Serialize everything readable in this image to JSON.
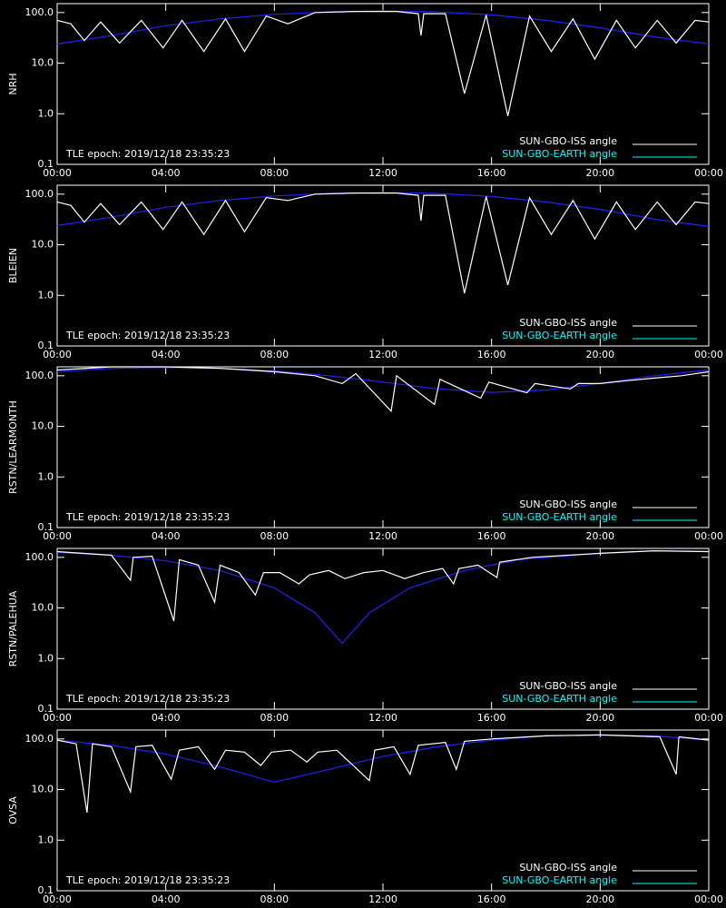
{
  "chart_data": [
    {
      "type": "line",
      "ylabel": "NRH",
      "annotation": "TLE epoch: 2019/12/18 23:35:23",
      "log_y": true,
      "legend": "lower right",
      "xlim": [
        0,
        24
      ],
      "xticks": [
        {
          "value": 0,
          "label": "00:00"
        },
        {
          "value": 4,
          "label": "04:00"
        },
        {
          "value": 8,
          "label": "08:00"
        },
        {
          "value": 12,
          "label": "12:00"
        },
        {
          "value": 16,
          "label": "16:00"
        },
        {
          "value": 20,
          "label": "20:00"
        },
        {
          "value": 24,
          "label": "00:00"
        }
      ],
      "ylim": [
        0.1,
        150
      ],
      "yticks": [
        0.1,
        {
          "value": 1,
          "label": "1.0"
        },
        {
          "value": 10,
          "label": "10.0"
        },
        {
          "value": 100,
          "label": "100.0"
        }
      ],
      "series": [
        {
          "name": "SUN-GBO-ISS angle",
          "color": "#ffffff",
          "line_color": "#ffffff",
          "x": [
            0,
            0.5,
            1.0,
            1.6,
            2.3,
            3.1,
            3.9,
            4.6,
            5.4,
            6.2,
            6.9,
            7.7,
            8.5,
            9.5,
            11,
            12.5,
            13.3,
            13.4,
            13.5,
            14.3,
            15.0,
            15.8,
            16.6,
            17.4,
            18.2,
            19.0,
            19.8,
            20.6,
            21.3,
            22.1,
            22.8,
            23.5,
            24
          ],
          "values": [
            70,
            60,
            28,
            65,
            25,
            70,
            20,
            70,
            17,
            75,
            17,
            85,
            60,
            100,
            105,
            105,
            95,
            35,
            95,
            95,
            2.5,
            90,
            0.9,
            85,
            17,
            75,
            12,
            70,
            20,
            70,
            25,
            70,
            65
          ]
        },
        {
          "name": "SUN-GBO-EARTH angle",
          "color": "#00ffff",
          "line_color": "#2222ff",
          "x": [
            0,
            2,
            4,
            6,
            8,
            10,
            12,
            14,
            16,
            18,
            20,
            22,
            24
          ],
          "values": [
            24,
            35,
            55,
            75,
            92,
            103,
            108,
            103,
            90,
            70,
            50,
            33,
            24
          ]
        }
      ]
    },
    {
      "type": "line",
      "ylabel": "BLEIEN",
      "annotation": "TLE epoch: 2019/12/18 23:35:23",
      "log_y": true,
      "legend": "lower right",
      "xlim": [
        0,
        24
      ],
      "xticks": [
        {
          "value": 0,
          "label": "00:00"
        },
        {
          "value": 4,
          "label": "04:00"
        },
        {
          "value": 8,
          "label": "08:00"
        },
        {
          "value": 12,
          "label": "12:00"
        },
        {
          "value": 16,
          "label": "16:00"
        },
        {
          "value": 20,
          "label": "20:00"
        },
        {
          "value": 24,
          "label": "00:00"
        }
      ],
      "ylim": [
        0.1,
        150
      ],
      "yticks": [
        0.1,
        {
          "value": 1,
          "label": "1.0"
        },
        {
          "value": 10,
          "label": "10.0"
        },
        {
          "value": 100,
          "label": "100.0"
        }
      ],
      "series": [
        {
          "name": "SUN-GBO-ISS angle",
          "color": "#ffffff",
          "line_color": "#ffffff",
          "x": [
            0,
            0.5,
            1.0,
            1.6,
            2.3,
            3.1,
            3.9,
            4.6,
            5.4,
            6.2,
            6.9,
            7.7,
            8.5,
            9.5,
            11,
            12.5,
            13.3,
            13.4,
            13.5,
            14.3,
            15.0,
            15.8,
            16.6,
            17.4,
            18.2,
            19.0,
            19.8,
            20.6,
            21.3,
            22.1,
            22.8,
            23.5,
            24
          ],
          "values": [
            70,
            60,
            28,
            65,
            25,
            70,
            20,
            70,
            16,
            75,
            18,
            85,
            75,
            100,
            105,
            105,
            95,
            30,
            95,
            95,
            1.1,
            90,
            1.6,
            85,
            16,
            75,
            13,
            70,
            20,
            70,
            25,
            70,
            65
          ]
        },
        {
          "name": "SUN-GBO-EARTH angle",
          "color": "#00ffff",
          "line_color": "#2222ff",
          "x": [
            0,
            2,
            4,
            6,
            8,
            10,
            12,
            14,
            16,
            18,
            20,
            22,
            24
          ],
          "values": [
            24,
            35,
            55,
            75,
            92,
            103,
            108,
            103,
            90,
            70,
            50,
            32,
            23
          ]
        }
      ]
    },
    {
      "type": "line",
      "ylabel": "RSTN/LEARMONTH",
      "annotation": "TLE epoch: 2019/12/18 23:35:23",
      "log_y": true,
      "legend": "lower right",
      "xlim": [
        0,
        24
      ],
      "xticks": [
        {
          "value": 0,
          "label": "00:00"
        },
        {
          "value": 4,
          "label": "04:00"
        },
        {
          "value": 8,
          "label": "08:00"
        },
        {
          "value": 12,
          "label": "12:00"
        },
        {
          "value": 16,
          "label": "16:00"
        },
        {
          "value": 20,
          "label": "20:00"
        },
        {
          "value": 24,
          "label": "00:00"
        }
      ],
      "ylim": [
        0.1,
        150
      ],
      "yticks": [
        0.1,
        {
          "value": 1,
          "label": "1.0"
        },
        {
          "value": 10,
          "label": "10.0"
        },
        {
          "value": 100,
          "label": "100.0"
        }
      ],
      "series": [
        {
          "name": "SUN-GBO-ISS angle",
          "color": "#ffffff",
          "line_color": "#ffffff",
          "x": [
            0,
            2,
            4,
            6,
            8,
            9.5,
            10.5,
            11.0,
            12.3,
            12.5,
            13.9,
            14.1,
            15.6,
            15.9,
            17.3,
            17.6,
            18.9,
            19.2,
            20,
            21,
            22,
            23,
            24
          ],
          "values": [
            130,
            150,
            150,
            140,
            120,
            100,
            70,
            110,
            20,
            100,
            27,
            85,
            36,
            75,
            46,
            70,
            55,
            70,
            70,
            80,
            90,
            100,
            120
          ]
        },
        {
          "name": "SUN-GBO-EARTH angle",
          "color": "#00ffff",
          "line_color": "#2222ff",
          "x": [
            0,
            2,
            4,
            6,
            8,
            10,
            12,
            14,
            16,
            18,
            20,
            22,
            24
          ],
          "values": [
            120,
            140,
            145,
            140,
            125,
            100,
            75,
            55,
            47,
            52,
            70,
            100,
            130
          ]
        }
      ]
    },
    {
      "type": "line",
      "ylabel": "RSTN/PALEHUA",
      "annotation": "TLE epoch: 2019/12/18 23:35:23",
      "log_y": true,
      "legend": "lower right",
      "xlim": [
        0,
        24
      ],
      "xticks": [
        {
          "value": 0,
          "label": "00:00"
        },
        {
          "value": 4,
          "label": "04:00"
        },
        {
          "value": 8,
          "label": "08:00"
        },
        {
          "value": 12,
          "label": "12:00"
        },
        {
          "value": 16,
          "label": "16:00"
        },
        {
          "value": 20,
          "label": "20:00"
        },
        {
          "value": 24,
          "label": "00:00"
        }
      ],
      "ylim": [
        0.1,
        150
      ],
      "yticks": [
        0.1,
        {
          "value": 1,
          "label": "1.0"
        },
        {
          "value": 10,
          "label": "10.0"
        },
        {
          "value": 100,
          "label": "100.0"
        }
      ],
      "series": [
        {
          "name": "SUN-GBO-ISS angle",
          "color": "#ffffff",
          "line_color": "#ffffff",
          "x": [
            0,
            2,
            2.7,
            2.8,
            3.5,
            4.3,
            4.5,
            5.2,
            5.8,
            6.0,
            6.7,
            7.3,
            7.6,
            8.2,
            8.9,
            9.3,
            10.0,
            10.6,
            11.3,
            12.0,
            12.8,
            13.5,
            14.2,
            14.6,
            14.8,
            15.5,
            16.2,
            16.3,
            17.5,
            20,
            22,
            24
          ],
          "values": [
            130,
            110,
            35,
            100,
            105,
            5.5,
            90,
            70,
            13,
            70,
            50,
            18,
            50,
            50,
            30,
            45,
            55,
            38,
            50,
            55,
            38,
            50,
            60,
            30,
            60,
            70,
            40,
            80,
            100,
            120,
            135,
            130
          ]
        },
        {
          "name": "SUN-GBO-EARTH angle",
          "color": "#00ffff",
          "line_color": "#2222ff",
          "x": [
            0,
            2,
            4,
            6,
            8,
            9.5,
            10.5,
            11.5,
            13,
            15,
            17,
            20,
            22,
            24
          ],
          "values": [
            125,
            110,
            85,
            55,
            25,
            8,
            2,
            8,
            25,
            55,
            90,
            120,
            135,
            130
          ]
        }
      ]
    },
    {
      "type": "line",
      "ylabel": "OVSA",
      "annotation": "TLE epoch: 2019/12/18 23:35:23",
      "log_y": true,
      "legend": "lower right",
      "xlim": [
        0,
        24
      ],
      "xticks": [
        {
          "value": 0,
          "label": "00:00"
        },
        {
          "value": 4,
          "label": "04:00"
        },
        {
          "value": 8,
          "label": "08:00"
        },
        {
          "value": 12,
          "label": "12:00"
        },
        {
          "value": 16,
          "label": "16:00"
        },
        {
          "value": 20,
          "label": "20:00"
        },
        {
          "value": 24,
          "label": "00:00"
        }
      ],
      "ylim": [
        0.1,
        150
      ],
      "yticks": [
        0.1,
        {
          "value": 1,
          "label": "1.0"
        },
        {
          "value": 10,
          "label": "10.0"
        },
        {
          "value": 100,
          "label": "100.0"
        }
      ],
      "series": [
        {
          "name": "SUN-GBO-ISS angle",
          "color": "#ffffff",
          "line_color": "#ffffff",
          "x": [
            0,
            0.7,
            1.1,
            1.3,
            2.0,
            2.7,
            2.9,
            3.5,
            4.2,
            4.5,
            5.2,
            5.8,
            6.2,
            6.9,
            7.5,
            7.9,
            8.6,
            9.2,
            9.6,
            10.3,
            11.5,
            11.7,
            12.4,
            13.0,
            13.3,
            14.3,
            14.7,
            15.0,
            16,
            18,
            20,
            22.2,
            22.8,
            22.9,
            24
          ],
          "values": [
            95,
            80,
            3.5,
            80,
            70,
            9,
            70,
            75,
            16,
            60,
            70,
            25,
            60,
            55,
            30,
            55,
            60,
            35,
            55,
            60,
            15,
            60,
            70,
            20,
            75,
            85,
            25,
            90,
            100,
            115,
            120,
            110,
            20,
            110,
            95
          ]
        },
        {
          "name": "SUN-GBO-EARTH angle",
          "color": "#00ffff",
          "line_color": "#2222ff",
          "x": [
            0,
            2,
            4,
            6,
            8,
            10,
            12,
            14,
            16,
            18,
            20,
            22,
            24
          ],
          "values": [
            95,
            75,
            50,
            28,
            14,
            25,
            45,
            70,
            95,
            115,
            120,
            115,
            95
          ]
        }
      ]
    }
  ]
}
